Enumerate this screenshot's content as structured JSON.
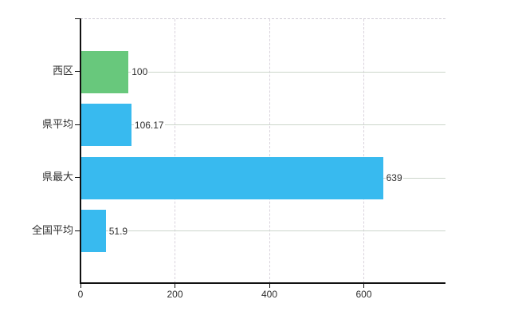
{
  "chart_data": {
    "type": "bar",
    "orientation": "horizontal",
    "title": "",
    "xlabel": "",
    "ylabel": "",
    "categories": [
      "西区",
      "県平均",
      "県最大",
      "全国平均"
    ],
    "values": [
      100,
      106.17,
      639,
      51.9
    ],
    "value_labels": [
      "100",
      "106.17",
      "639",
      "51.9"
    ],
    "bar_colors": [
      "#68c87c",
      "#38baef",
      "#38baef",
      "#38baef"
    ],
    "x_ticks": [
      0,
      200,
      400,
      600
    ],
    "x_tick_labels": [
      "0",
      "200",
      "400",
      "600"
    ],
    "xlim": [
      0,
      773
    ],
    "grid": true,
    "legend": null,
    "colors": {
      "green_bar": "#68c87c",
      "blue_bar": "#38baef",
      "h_gridline": "#ccd6cb",
      "v_gridline": "#d9d2dc",
      "axis": "#111111",
      "text": "#2f2f2f",
      "background": "#ffffff"
    }
  }
}
